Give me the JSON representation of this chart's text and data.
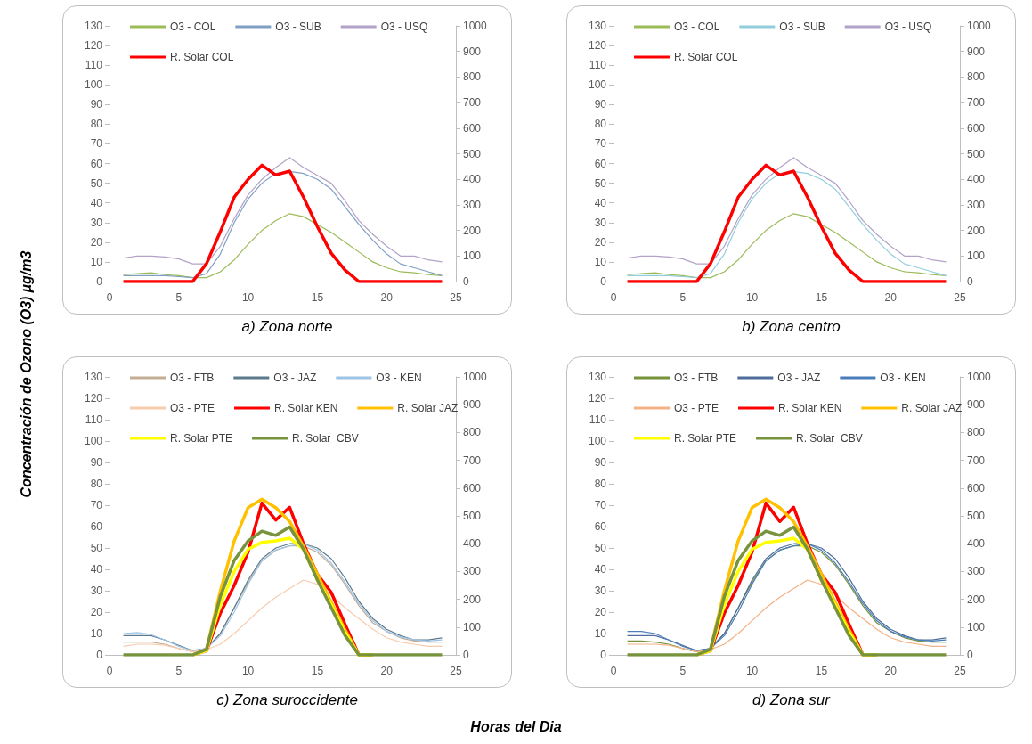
{
  "chart_data": [
    {
      "type": "line",
      "title": "a) Zona norte",
      "ylabel": "Concentración de Ozono (O3) µg/m3",
      "x": [
        1,
        2,
        3,
        4,
        5,
        6,
        7,
        8,
        9,
        10,
        11,
        12,
        13,
        14,
        15,
        16,
        17,
        18,
        19,
        20,
        21,
        22,
        23,
        24
      ],
      "xlim": [
        0,
        25
      ],
      "xticks": [
        0,
        5,
        10,
        15,
        20,
        25
      ],
      "ylim": [
        0,
        130
      ],
      "yticks": [
        0,
        10,
        20,
        30,
        40,
        50,
        60,
        70,
        80,
        90,
        100,
        110,
        120,
        130
      ],
      "y2lim": [
        0,
        1000
      ],
      "y2ticks": [
        0,
        100,
        200,
        300,
        400,
        500,
        600,
        700,
        800,
        900,
        1000
      ],
      "grid": false,
      "legend": "top",
      "series": [
        {
          "name": "O3 - COL",
          "color": "#9bbb59",
          "values": [
            3.5,
            4,
            4.5,
            3.5,
            3,
            2,
            2,
            5,
            11,
            19,
            26,
            31,
            34.5,
            33,
            29,
            25,
            20,
            15,
            10,
            7,
            5,
            4.5,
            3.5,
            3
          ]
        },
        {
          "name": "O3 - SUB",
          "color": "#7f9fc4",
          "values": [
            3,
            3,
            3,
            3,
            2.5,
            2,
            4,
            14,
            30,
            42,
            50,
            55,
            56,
            55,
            52,
            47,
            38,
            29,
            21,
            14,
            9,
            7,
            5,
            3
          ]
        },
        {
          "name": "O3 - USQ",
          "color": "#b3a2c7",
          "values": [
            12,
            13,
            13,
            12.5,
            11.5,
            9,
            9,
            18,
            32,
            44,
            52,
            58,
            63,
            58,
            54,
            50,
            41,
            31,
            24,
            18,
            13,
            13,
            11,
            10
          ]
        },
        {
          "name": "R. Solar COL",
          "color": "#ff0000",
          "axis": "y2",
          "values": [
            0,
            0,
            0,
            0,
            0,
            0,
            70,
            195,
            330,
            400,
            455,
            417,
            432,
            330,
            215,
            111,
            45,
            0,
            0,
            0,
            0,
            0,
            0,
            0
          ]
        }
      ]
    },
    {
      "type": "line",
      "title": "b) Zona centro",
      "x": [
        1,
        2,
        3,
        4,
        5,
        6,
        7,
        8,
        9,
        10,
        11,
        12,
        13,
        14,
        15,
        16,
        17,
        18,
        19,
        20,
        21,
        22,
        23,
        24
      ],
      "xlim": [
        0,
        25
      ],
      "xticks": [
        0,
        5,
        10,
        15,
        20,
        25
      ],
      "ylim": [
        0,
        130
      ],
      "yticks": [
        0,
        10,
        20,
        30,
        40,
        50,
        60,
        70,
        80,
        90,
        100,
        110,
        120,
        130
      ],
      "y2lim": [
        0,
        1000
      ],
      "y2ticks": [
        0,
        100,
        200,
        300,
        400,
        500,
        600,
        700,
        800,
        900,
        1000
      ],
      "grid": false,
      "legend": "top",
      "series": [
        {
          "name": "O3 - COL",
          "color": "#9bbb59",
          "values": [
            3.5,
            4,
            4.5,
            3.5,
            3,
            2,
            2,
            5,
            11,
            19,
            26,
            31,
            34.5,
            33,
            29,
            25,
            20,
            15,
            10,
            7,
            5,
            4.5,
            3.5,
            3
          ]
        },
        {
          "name": "O3 - SUB",
          "color": "#92cddc",
          "values": [
            3,
            3,
            3,
            3,
            2.5,
            2,
            4,
            14,
            30,
            42,
            50,
            55,
            56,
            55,
            52,
            47,
            38,
            29,
            21,
            14,
            9,
            7,
            5,
            3
          ]
        },
        {
          "name": "O3 - USQ",
          "color": "#b3a2c7",
          "values": [
            12,
            13,
            13,
            12.5,
            11.5,
            9,
            9,
            18,
            32,
            44,
            52,
            58,
            63,
            58,
            54,
            50,
            41,
            31,
            24,
            18,
            13,
            13,
            11,
            10
          ]
        },
        {
          "name": "R. Solar COL",
          "color": "#ff0000",
          "axis": "y2",
          "values": [
            0,
            0,
            0,
            0,
            0,
            0,
            70,
            195,
            330,
            400,
            455,
            417,
            432,
            330,
            215,
            111,
            45,
            0,
            0,
            0,
            0,
            0,
            0,
            0
          ]
        }
      ]
    },
    {
      "type": "line",
      "title": "c) Zona suroccidente",
      "xlabel": "Horas del Dia",
      "x": [
        1,
        2,
        3,
        4,
        5,
        6,
        7,
        8,
        9,
        10,
        11,
        12,
        13,
        14,
        15,
        16,
        17,
        18,
        19,
        20,
        21,
        22,
        23,
        24
      ],
      "xlim": [
        0,
        25
      ],
      "xticks": [
        0,
        5,
        10,
        15,
        20,
        25
      ],
      "ylim": [
        0,
        130
      ],
      "yticks": [
        0,
        10,
        20,
        30,
        40,
        50,
        60,
        70,
        80,
        90,
        100,
        110,
        120,
        130
      ],
      "y2lim": [
        0,
        1000
      ],
      "y2ticks": [
        0,
        100,
        200,
        300,
        400,
        500,
        600,
        700,
        800,
        900,
        1000
      ],
      "grid": false,
      "legend": "top",
      "series": [
        {
          "name": "O3 - FTB",
          "color": "#c4ad95",
          "values": [
            6,
            6,
            6,
            5,
            3,
            1.5,
            3,
            10,
            22,
            34,
            44,
            49,
            51,
            51,
            48,
            42,
            33,
            23,
            15,
            11,
            8,
            6.5,
            6,
            6
          ]
        },
        {
          "name": "O3 - JAZ",
          "color": "#5b7a8c",
          "values": [
            9,
            9,
            9,
            7,
            4.5,
            2,
            3,
            10,
            22,
            35,
            45,
            50,
            52,
            52,
            50,
            45,
            36,
            25,
            17,
            12,
            9,
            7,
            7,
            8
          ]
        },
        {
          "name": "O3 - KEN",
          "color": "#9dc3e6",
          "values": [
            10,
            10.5,
            9.5,
            7,
            4,
            2,
            3,
            9,
            20,
            33,
            44,
            49,
            51,
            52,
            49,
            43,
            34,
            24,
            16,
            11,
            8.5,
            7,
            6.5,
            7
          ]
        },
        {
          "name": "O3 - PTE",
          "color": "#f8cbad",
          "values": [
            4,
            5,
            5,
            4.5,
            3,
            1.5,
            2.5,
            5,
            10,
            16,
            22,
            27,
            31,
            35,
            33,
            28,
            22,
            17,
            12,
            8,
            6,
            5,
            4,
            4
          ]
        },
        {
          "name": "R. Solar KEN",
          "color": "#ff0000",
          "axis": "y2",
          "values": [
            null,
            null,
            null,
            null,
            null,
            0,
            15,
            150,
            250,
            370,
            546,
            485,
            531,
            400,
            290,
            225,
            110,
            0,
            0,
            null,
            null,
            null,
            null,
            null
          ]
        },
        {
          "name": "R. Solar JAZ",
          "color": "#ffc000",
          "axis": "y2",
          "values": [
            null,
            null,
            null,
            null,
            null,
            0,
            20,
            230,
            410,
            530,
            560,
            530,
            480,
            390,
            290,
            190,
            90,
            0,
            0,
            null,
            null,
            null,
            null,
            null
          ]
        },
        {
          "name": "R. Solar PTE",
          "color": "#ffff00",
          "axis": "y2",
          "values": [
            null,
            null,
            null,
            null,
            null,
            0,
            15,
            180,
            300,
            380,
            405,
            410,
            420,
            380,
            270,
            180,
            80,
            0,
            0,
            null,
            null,
            null,
            null,
            null
          ]
        },
        {
          "name": "R. Solar  CBV",
          "color": "#77933c",
          "axis": "y2",
          "values": [
            0,
            0,
            0,
            0,
            0,
            0,
            20,
            210,
            340,
            410,
            445,
            430,
            460,
            380,
            270,
            170,
            70,
            0,
            0,
            0,
            0,
            0,
            0,
            0
          ]
        }
      ]
    },
    {
      "type": "line",
      "title": "d) Zona sur",
      "x": [
        1,
        2,
        3,
        4,
        5,
        6,
        7,
        8,
        9,
        10,
        11,
        12,
        13,
        14,
        15,
        16,
        17,
        18,
        19,
        20,
        21,
        22,
        23,
        24
      ],
      "xlim": [
        0,
        25
      ],
      "xticks": [
        0,
        5,
        10,
        15,
        20,
        25
      ],
      "ylim": [
        0,
        130
      ],
      "yticks": [
        0,
        10,
        20,
        30,
        40,
        50,
        60,
        70,
        80,
        90,
        100,
        110,
        120,
        130
      ],
      "y2lim": [
        0,
        1000
      ],
      "y2ticks": [
        0,
        100,
        200,
        300,
        400,
        500,
        600,
        700,
        800,
        900,
        1000
      ],
      "grid": false,
      "legend": "top",
      "series": [
        {
          "name": "O3 - FTB",
          "color": "#77933c",
          "values": [
            6.5,
            6.5,
            6,
            5,
            3,
            1.5,
            3,
            10,
            22,
            34,
            44,
            49,
            51,
            51,
            48,
            42,
            33,
            23,
            15,
            11,
            8,
            6.5,
            6,
            6
          ]
        },
        {
          "name": "O3 - JAZ",
          "color": "#4f6d9a",
          "values": [
            9,
            9,
            9,
            7,
            4.5,
            2,
            3,
            10,
            22,
            35,
            45,
            50,
            52,
            52,
            50,
            45,
            36,
            25,
            17,
            12,
            9,
            7,
            7,
            8
          ]
        },
        {
          "name": "O3 - KEN",
          "color": "#4a7ebb",
          "values": [
            11,
            11,
            10,
            7,
            4,
            2,
            3,
            9,
            20,
            33,
            44,
            49,
            51,
            52,
            49,
            43,
            34,
            24,
            16,
            11,
            8.5,
            7,
            6.5,
            7
          ]
        },
        {
          "name": "O3 - PTE",
          "color": "#f4b183",
          "values": [
            5,
            5,
            5,
            4.5,
            3,
            1.5,
            2.5,
            5,
            10,
            16,
            22,
            27,
            31,
            35,
            33,
            28,
            22,
            17,
            12,
            8,
            6,
            5,
            4,
            4
          ]
        },
        {
          "name": "R. Solar KEN",
          "color": "#ff0000",
          "axis": "y2",
          "values": [
            null,
            null,
            null,
            null,
            null,
            0,
            15,
            150,
            250,
            370,
            546,
            480,
            531,
            400,
            290,
            225,
            110,
            0,
            0,
            null,
            null,
            null,
            null,
            null
          ]
        },
        {
          "name": "R. Solar JAZ",
          "color": "#ffc000",
          "axis": "y2",
          "values": [
            null,
            null,
            null,
            null,
            null,
            0,
            20,
            230,
            410,
            530,
            560,
            530,
            480,
            390,
            290,
            190,
            90,
            0,
            0,
            null,
            null,
            null,
            null,
            null
          ]
        },
        {
          "name": "R. Solar PTE",
          "color": "#ffff00",
          "axis": "y2",
          "values": [
            null,
            null,
            null,
            null,
            null,
            0,
            15,
            180,
            300,
            380,
            405,
            410,
            420,
            380,
            270,
            180,
            80,
            0,
            0,
            null,
            null,
            null,
            null,
            null
          ]
        },
        {
          "name": "R. Solar  CBV",
          "color": "#77933c",
          "axis": "y2",
          "values": [
            0,
            0,
            0,
            0,
            0,
            0,
            20,
            210,
            340,
            410,
            445,
            430,
            460,
            380,
            270,
            170,
            70,
            0,
            0,
            0,
            0,
            0,
            0,
            0
          ]
        }
      ]
    }
  ]
}
